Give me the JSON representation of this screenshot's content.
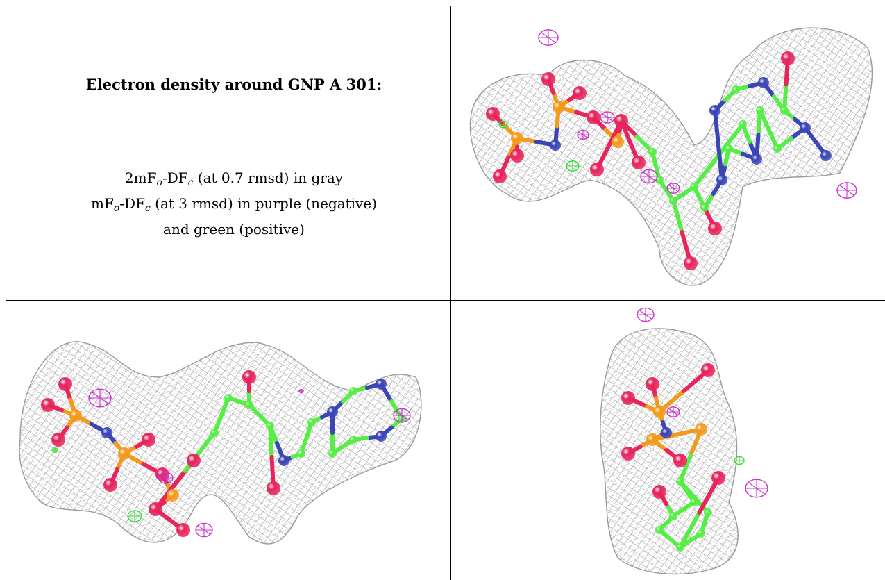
{
  "caption": {
    "title": "Electron density around GNP A 301:",
    "line1_pre": "2mF",
    "line1_sub_o": "o",
    "line1_mid": "-DF",
    "line1_sub_c": "c",
    "line1_post": " (at 0.7 rmsd) in gray",
    "line2_pre": "mF",
    "line2_sub_o": "o",
    "line2_mid": "-DF",
    "line2_sub_c": "c",
    "line2_post": " (at 3 rmsd) in purple (negative)",
    "line3": "and green (positive)"
  },
  "colors": {
    "mesh_gray": "#9a9a9a",
    "negative_purple": "#cc33cc",
    "positive_green": "#33dd33",
    "oxygen": "#e8245c",
    "phosphorus": "#f39a1c",
    "nitrogen": "#3b45b8",
    "carbon": "#55ee44",
    "hydrogen": "#e6e6e6"
  },
  "views": [
    {
      "name": "view-top-right"
    },
    {
      "name": "view-bottom-left"
    },
    {
      "name": "view-bottom-right"
    }
  ]
}
